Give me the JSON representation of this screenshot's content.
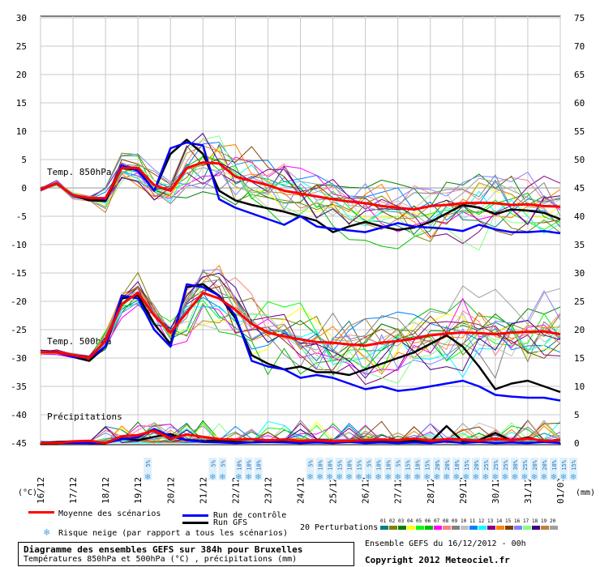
{
  "chart_data": {
    "type": "line",
    "left_axis_label": "(°C)",
    "right_axis_label": "(mm)",
    "left_ticks": [
      30,
      25,
      20,
      15,
      10,
      5,
      0,
      -5,
      -10,
      -15,
      -20,
      -25,
      -30,
      -35,
      -40,
      -45
    ],
    "right_ticks_temp850": [
      75,
      70,
      65,
      60,
      55,
      50,
      45,
      40,
      35
    ],
    "right_ticks_lower": [
      30,
      25,
      20,
      15,
      10,
      5,
      0
    ],
    "dates": [
      "16/12",
      "17/12",
      "18/12",
      "19/12",
      "20/12",
      "21/12",
      "22/12",
      "23/12",
      "24/12",
      "25/12",
      "26/12",
      "27/12",
      "28/12",
      "29/12",
      "30/12",
      "31/12",
      "01/01"
    ],
    "panel_labels": {
      "t850": "Temp. 850hPa",
      "t500": "Temp. 500hPa",
      "precip": "Précipitations"
    },
    "x_hours": [
      0,
      12,
      24,
      36,
      48,
      60,
      72,
      84,
      96,
      108,
      120,
      132,
      144,
      156,
      168,
      180,
      192,
      204,
      216,
      228,
      240,
      252,
      264,
      276,
      288,
      300,
      312,
      324,
      336,
      348,
      360,
      372,
      384
    ],
    "series_850": [
      {
        "name": "Moyenne des scénarios",
        "color": "#ff0000",
        "values": [
          -0.2,
          0.8,
          -1.3,
          -1.8,
          -1.8,
          3.5,
          3.5,
          0.5,
          -0.5,
          3.5,
          4.5,
          4.3,
          2.0,
          1.2,
          0.5,
          -0.5,
          -1.0,
          -1.5,
          -2.0,
          -2.4,
          -2.7,
          -3.2,
          -3.5,
          -3.8,
          -3.2,
          -3.0,
          -2.7,
          -2.6,
          -2.7,
          -3.0,
          -2.9,
          -3.2,
          -3.3
        ]
      },
      {
        "name": "Run de contrôle",
        "color": "#0000ff",
        "values": [
          -0.2,
          0.8,
          -1.3,
          -1.8,
          -2.0,
          4.0,
          3.0,
          -0.5,
          7.0,
          8.0,
          7.5,
          -2.0,
          -3.5,
          -4.5,
          -5.5,
          -6.5,
          -5.0,
          -6.8,
          -7.2,
          -7.5,
          -7.8,
          -7.0,
          -6.2,
          -6.8,
          -7.0,
          -7.2,
          -7.6,
          -6.5,
          -7.3,
          -7.8,
          -7.8,
          -7.6,
          -8.0
        ]
      },
      {
        "name": "Run GFS",
        "color": "#000000",
        "values": [
          -0.2,
          0.8,
          -1.3,
          -2.2,
          -2.3,
          3.5,
          3.2,
          -0.5,
          6.0,
          8.5,
          6.0,
          -0.5,
          -2.2,
          -3.0,
          -3.6,
          -4.2,
          -5.0,
          -5.8,
          -7.8,
          -6.8,
          -6.0,
          -6.8,
          -7.4,
          -7.0,
          -6.0,
          -4.5,
          -3.0,
          -3.5,
          -4.6,
          -3.8,
          -4.0,
          -4.4,
          -5.5
        ]
      }
    ],
    "series_500": [
      {
        "name": "Moyenne des scénarios",
        "color": "#ff0000",
        "values": [
          -29.0,
          -29.0,
          -29.5,
          -30.0,
          -27.0,
          -20.5,
          -18.5,
          -22.5,
          -25.5,
          -22.0,
          -18.5,
          -19.5,
          -21.5,
          -24.0,
          -25.5,
          -26.2,
          -26.7,
          -27.2,
          -27.3,
          -27.6,
          -27.8,
          -27.3,
          -27.0,
          -26.6,
          -26.0,
          -25.7,
          -25.5,
          -25.6,
          -25.8,
          -25.5,
          -25.4,
          -25.3,
          -25.8
        ]
      },
      {
        "name": "Run de contrôle",
        "color": "#0000ff",
        "values": [
          -29.0,
          -29.0,
          -29.8,
          -30.0,
          -28.0,
          -19.0,
          -19.5,
          -25.0,
          -28.0,
          -17.0,
          -17.5,
          -19.0,
          -22.5,
          -30.5,
          -31.5,
          -32.0,
          -33.5,
          -33.0,
          -33.5,
          -34.5,
          -35.5,
          -35.0,
          -35.8,
          -35.5,
          -35.0,
          -34.5,
          -34.0,
          -35.0,
          -36.5,
          -36.8,
          -37.0,
          -37.0,
          -37.5
        ]
      },
      {
        "name": "Run GFS",
        "color": "#000000",
        "values": [
          -29.0,
          -29.0,
          -29.8,
          -30.5,
          -28.0,
          -19.5,
          -19.0,
          -24.0,
          -27.5,
          -17.5,
          -17.0,
          -19.0,
          -23.0,
          -29.5,
          -31.0,
          -32.0,
          -31.5,
          -32.5,
          -32.5,
          -33.0,
          -32.0,
          -31.0,
          -30.0,
          -29.0,
          -27.5,
          -26.0,
          -28.0,
          -31.5,
          -35.5,
          -34.5,
          -34.0,
          -35.0,
          -36.0
        ]
      }
    ],
    "series_precip": [
      {
        "name": "Moyenne des scénarios",
        "color": "#ff0000",
        "values": [
          -45,
          -45,
          -44.7,
          -44.6,
          -45,
          -43.8,
          -43.6,
          -42.8,
          -44.2,
          -43.5,
          -43.9,
          -44.3,
          -44.4,
          -44.3,
          -44.5,
          -44.4,
          -44.6,
          -44.5,
          -44.7,
          -44.6,
          -44.5,
          -44.4,
          -44.5,
          -44.2,
          -44.6,
          -44.3,
          -44.4,
          -44.6,
          -44.2,
          -44.5,
          -44.2,
          -44.6,
          -44.5
        ]
      },
      {
        "name": "Run de contrôle",
        "color": "#0000ff",
        "values": [
          -45,
          -45,
          -45,
          -45,
          -45,
          -44.3,
          -44,
          -42.5,
          -43.8,
          -44.5,
          -44.8,
          -44.9,
          -45,
          -44.9,
          -44.8,
          -44.9,
          -45,
          -44.9,
          -45,
          -44.8,
          -45,
          -44.9,
          -45,
          -44.9,
          -45,
          -44.7,
          -45,
          -44.8,
          -45,
          -44.9,
          -45,
          -44.8,
          -45
        ]
      },
      {
        "name": "Run GFS",
        "color": "#000000",
        "values": [
          -45,
          -44.8,
          -44.7,
          -45,
          -45,
          -44.2,
          -44.5,
          -43.9,
          -43.4,
          -44.5,
          -44.7,
          -44.5,
          -44.8,
          -44.9,
          -44.5,
          -44.8,
          -45,
          -44.7,
          -44.9,
          -44.6,
          -44.8,
          -44.7,
          -44.9,
          -44.6,
          -44.8,
          -42.0,
          -44.7,
          -44.5,
          -43.2,
          -44.6,
          -44.0,
          -44.8,
          -44.5
        ]
      }
    ],
    "snow_risk": [
      {
        "date_index": 3.3,
        "label": "5%"
      },
      {
        "date_index": 5.3,
        "label": "5%"
      },
      {
        "date_index": 5.6,
        "label": "5%"
      },
      {
        "date_index": 6.1,
        "label": "10%"
      },
      {
        "date_index": 6.4,
        "label": "10%"
      },
      {
        "date_index": 6.7,
        "label": "10%"
      },
      {
        "date_index": 8.3,
        "label": "5%"
      },
      {
        "date_index": 8.6,
        "label": "10%"
      },
      {
        "date_index": 8.9,
        "label": "10%"
      },
      {
        "date_index": 9.2,
        "label": "15%"
      },
      {
        "date_index": 9.5,
        "label": "10%"
      },
      {
        "date_index": 9.8,
        "label": "15%"
      },
      {
        "date_index": 10.1,
        "label": "5%"
      },
      {
        "date_index": 10.4,
        "label": "10%"
      },
      {
        "date_index": 10.7,
        "label": "10%"
      },
      {
        "date_index": 11.0,
        "label": "5%"
      },
      {
        "date_index": 11.3,
        "label": "15%"
      },
      {
        "date_index": 11.6,
        "label": "10%"
      },
      {
        "date_index": 11.9,
        "label": "15%"
      },
      {
        "date_index": 12.2,
        "label": "20%"
      },
      {
        "date_index": 12.5,
        "label": "20%"
      },
      {
        "date_index": 12.8,
        "label": "10%"
      },
      {
        "date_index": 13.1,
        "label": "15%"
      },
      {
        "date_index": 13.4,
        "label": "20%"
      },
      {
        "date_index": 13.7,
        "label": "25%"
      },
      {
        "date_index": 14.0,
        "label": "25%"
      },
      {
        "date_index": 14.3,
        "label": "25%"
      },
      {
        "date_index": 14.6,
        "label": "30%"
      },
      {
        "date_index": 14.9,
        "label": "25%"
      },
      {
        "date_index": 15.2,
        "label": "20%"
      },
      {
        "date_index": 15.5,
        "label": "20%"
      },
      {
        "date_index": 15.8,
        "label": "10%"
      },
      {
        "date_index": 16.1,
        "label": "15%"
      },
      {
        "date_index": 16.4,
        "label": "15%"
      }
    ]
  },
  "legend": {
    "mean_label": "Moyenne des scénarios",
    "control_label": "Run de contrôle",
    "gfs_label": "Run GFS",
    "snow_label": "Risque neige (par rapport a tous les scénarios)",
    "perturbations_label": "20 Perturbations",
    "perturbation_numbers": [
      "01",
      "02",
      "03",
      "04",
      "05",
      "06",
      "07",
      "08",
      "09",
      "10",
      "11",
      "12",
      "13",
      "14",
      "15",
      "16",
      "17",
      "18",
      "19",
      "20"
    ],
    "perturbation_colors": [
      "#008080",
      "#808000",
      "#008000",
      "#ffff00",
      "#00ff00",
      "#00c000",
      "#ff00ff",
      "#ff8080",
      "#808080",
      "#c0c0c0",
      "#0080ff",
      "#00ffff",
      "#800080",
      "#ff8000",
      "#804000",
      "#8080ff",
      "#80ff80",
      "#400080",
      "#c08040",
      "#a0a0a0"
    ]
  },
  "title": {
    "line1": "Diagramme des ensembles GEFS sur 384h pour Bruxelles",
    "line2": "Températures 850hPa et 500hPa (°C) , précipitations (mm)"
  },
  "footer": {
    "run": "Ensemble GEFS du 16/12/2012 - 00h",
    "copyright": "Copyright 2012 Meteociel.fr"
  }
}
